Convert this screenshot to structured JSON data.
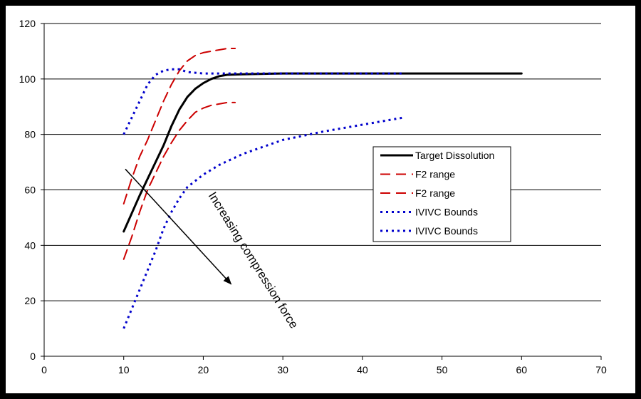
{
  "chart_data": {
    "type": "line",
    "title": "",
    "xlabel": "",
    "ylabel": "",
    "xlim": [
      0,
      70
    ],
    "ylim": [
      0,
      120
    ],
    "xticks": [
      0,
      10,
      20,
      30,
      40,
      50,
      60,
      70
    ],
    "yticks": [
      0,
      20,
      40,
      60,
      80,
      100,
      120
    ],
    "grid": "horizontal",
    "legend_position": "right",
    "series": [
      {
        "name": "Target Dissolution",
        "color": "#000000",
        "style": "solid",
        "x": [
          10,
          12,
          14,
          15,
          16,
          17,
          18,
          19,
          20,
          21,
          22,
          23,
          25,
          30,
          35,
          40,
          50,
          60
        ],
        "y": [
          45,
          58,
          70,
          76,
          83,
          89,
          93.5,
          96.5,
          98.5,
          100,
          101,
          101.5,
          101.7,
          102,
          102,
          102,
          102,
          102
        ]
      },
      {
        "name": "F2 range",
        "color": "#cc0000",
        "style": "dashed",
        "x": [
          10,
          11,
          12,
          13,
          14,
          15,
          16,
          17,
          18,
          19,
          20,
          21,
          22,
          23,
          24
        ],
        "y": [
          55,
          64,
          72,
          78,
          85,
          92,
          98,
          103,
          106.5,
          108.5,
          109.5,
          110,
          110.5,
          111,
          111
        ]
      },
      {
        "name": "F2 range",
        "color": "#cc0000",
        "style": "dashed",
        "x": [
          10,
          11,
          12,
          13,
          14,
          15,
          16,
          17,
          18,
          19,
          20,
          21,
          22,
          23,
          24
        ],
        "y": [
          35,
          43,
          52,
          60,
          66,
          72,
          77,
          81.5,
          85,
          88,
          89.5,
          90.5,
          91,
          91.5,
          91.5
        ]
      },
      {
        "name": "IVIVC Bounds",
        "color": "#0000cc",
        "style": "dotted",
        "x": [
          10,
          11,
          12,
          13,
          14,
          15,
          16,
          17,
          18,
          20,
          24,
          30,
          40,
          45
        ],
        "y": [
          80,
          86,
          92,
          98,
          101.5,
          103,
          103.5,
          103.5,
          102.5,
          102,
          102,
          102,
          102,
          102
        ]
      },
      {
        "name": "IVIVC Bounds",
        "color": "#0000cc",
        "style": "dotted",
        "x": [
          10,
          11,
          12,
          13,
          14,
          15,
          16,
          17,
          18,
          20,
          22,
          25,
          30,
          35,
          40,
          45
        ],
        "y": [
          10,
          17,
          24,
          31,
          38,
          46,
          52,
          57,
          61,
          65.5,
          69,
          73,
          78,
          81,
          83.5,
          86
        ]
      }
    ],
    "annotations": [
      {
        "text": "Increasing compression force",
        "kind": "rotated-label"
      }
    ],
    "arrow": {
      "from": [
        10.2,
        67.5
      ],
      "to": [
        23.5,
        26
      ]
    }
  }
}
